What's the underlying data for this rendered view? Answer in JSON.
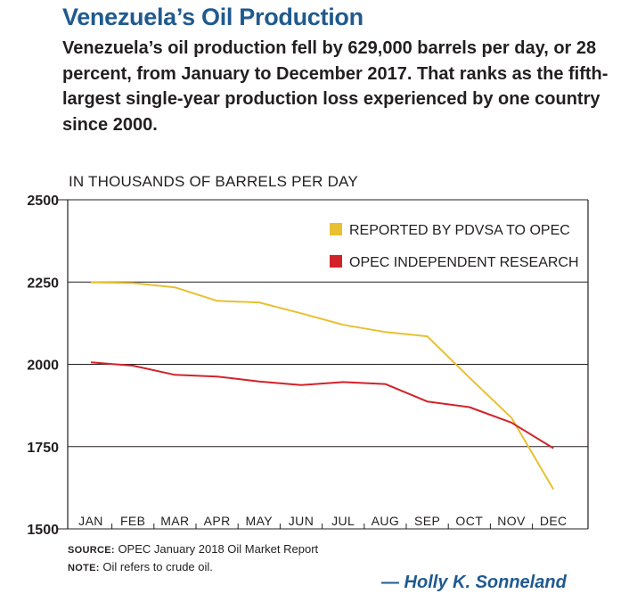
{
  "header": {
    "title": "Venezuela’s Oil Production",
    "subtitle": "Venezuela’s oil production fell by 629,000 barrels per day, or 28 percent, from January to December 2017. That ranks as the fifth-largest single-year production loss experienced by one country since 2000."
  },
  "chart_data": {
    "type": "line",
    "unit_label": "IN THOUSANDS OF BARRELS PER DAY",
    "categories": [
      "JAN",
      "FEB",
      "MAR",
      "APR",
      "MAY",
      "JUN",
      "JUL",
      "AUG",
      "SEP",
      "OCT",
      "NOV",
      "DEC"
    ],
    "ylim": [
      1500,
      2500
    ],
    "yticks": [
      2500,
      2250,
      2000,
      1750,
      1500
    ],
    "ytick_labels": [
      "2500",
      "2250",
      "2000",
      "1750",
      "1500"
    ],
    "grid": true,
    "legend_position": "top-right",
    "series": [
      {
        "name": "REPORTED BY PDVSA TO OPEC",
        "color": "#e8c032",
        "values": [
          2249,
          2247,
          2234,
          2193,
          2188,
          2155,
          2120,
          2098,
          2085,
          1960,
          1838,
          1620
        ]
      },
      {
        "name": "OPEC INDEPENDENT RESEARCH",
        "color": "#d1232a",
        "values": [
          2006,
          1996,
          1968,
          1963,
          1948,
          1937,
          1946,
          1940,
          1887,
          1870,
          1823,
          1745
        ]
      }
    ]
  },
  "footer": {
    "source_label": "SOURCE:",
    "source_text": " OPEC January 2018 Oil Market Report",
    "note_label": "NOTE:",
    "note_text": " Oil refers to crude oil.",
    "byline": "— Holly K. Sonneland"
  }
}
